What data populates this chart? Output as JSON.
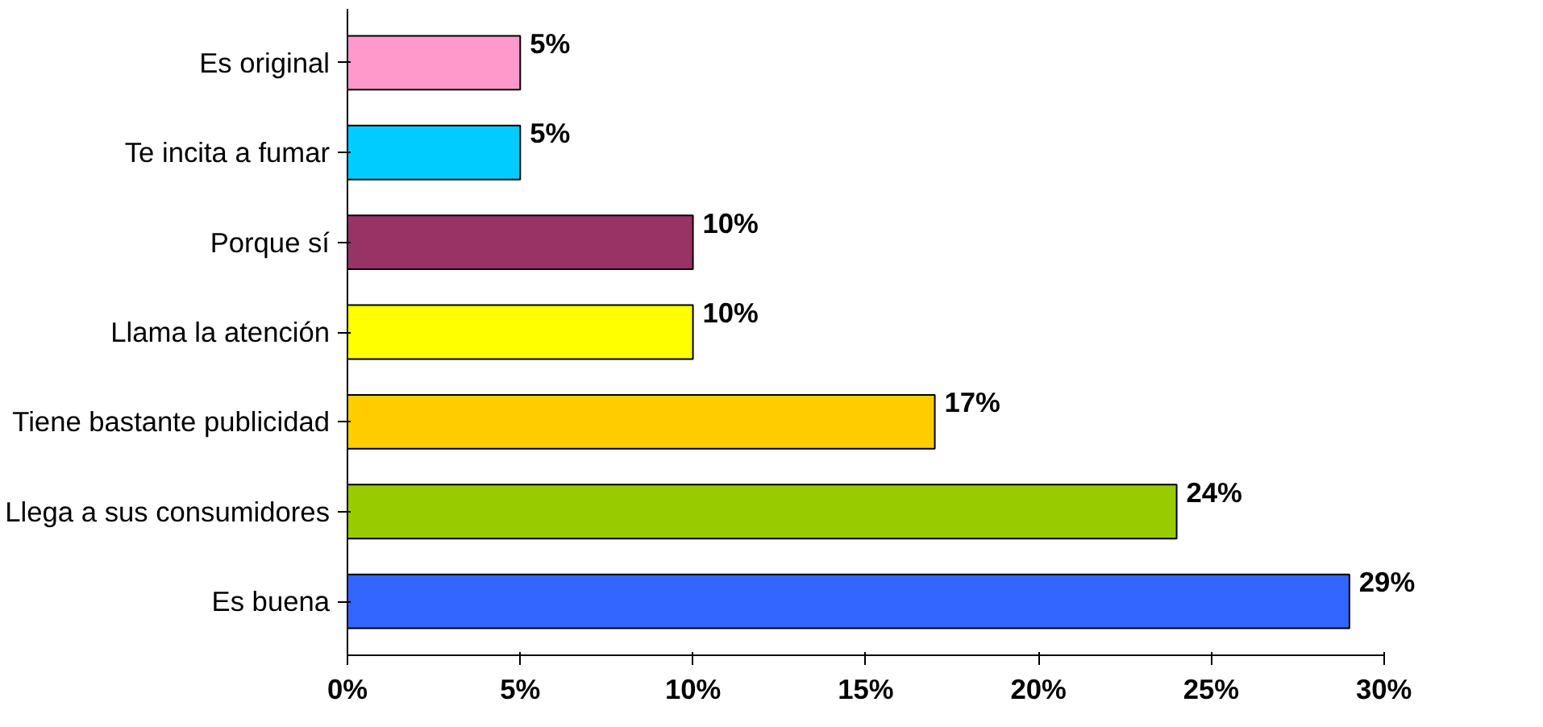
{
  "chart_data": {
    "type": "bar",
    "orientation": "horizontal",
    "categories": [
      "Es original",
      "Te incita a fumar",
      "Porque sí",
      "Llama la atención",
      "Tiene bastante publicidad",
      "Llega a sus consumidores",
      "Es buena"
    ],
    "values": [
      5,
      5,
      10,
      10,
      17,
      24,
      29
    ],
    "colors": [
      "#ff99cc",
      "#00ccff",
      "#993366",
      "#ffff00",
      "#ffcc00",
      "#99cc00",
      "#3366ff"
    ],
    "value_labels": [
      "5%",
      "5%",
      "10%",
      "10%",
      "17%",
      "24%",
      "29%"
    ],
    "xlim": [
      0,
      30
    ],
    "xticks": [
      {
        "value": 0,
        "label": "0%"
      },
      {
        "value": 5,
        "label": "5%"
      },
      {
        "value": 10,
        "label": "10%"
      },
      {
        "value": 15,
        "label": "15%"
      },
      {
        "value": 20,
        "label": "20%"
      },
      {
        "value": 25,
        "label": "25%"
      },
      {
        "value": 30,
        "label": "30%"
      }
    ],
    "grid": false
  }
}
